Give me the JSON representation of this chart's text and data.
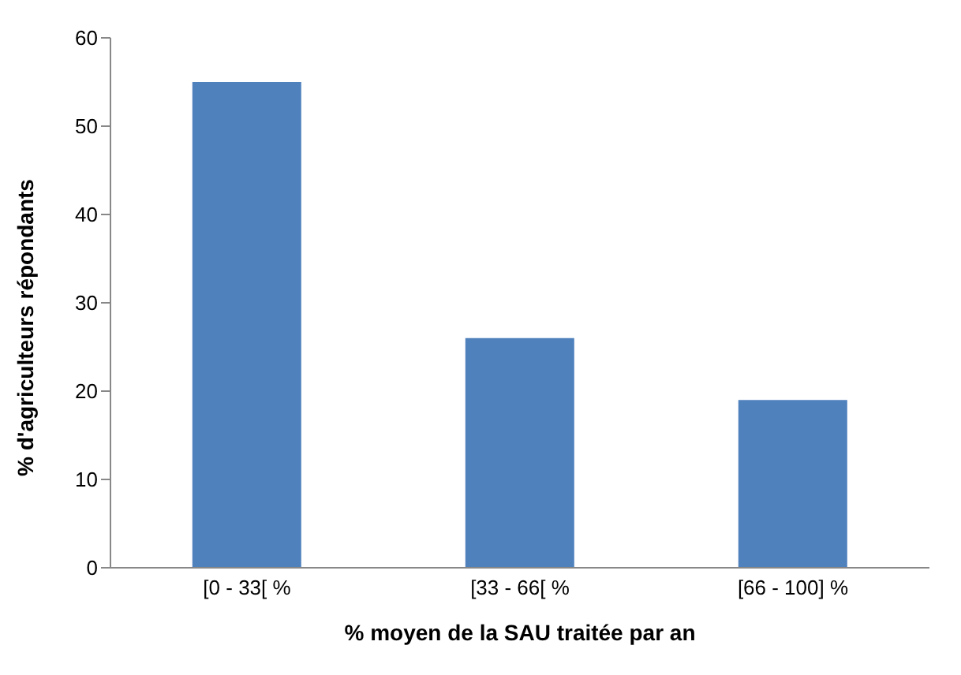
{
  "chart_data": {
    "type": "bar",
    "xlabel": "% moyen de la SAU traitée par an",
    "ylabel": "% d'agriculteurs répondants",
    "categories": [
      "[0 - 33[ %",
      "[33 - 66[ %",
      "[66 - 100] %"
    ],
    "values": [
      55,
      26,
      19
    ],
    "color": "#4f81bd",
    "ylim": [
      0,
      60
    ],
    "yticks": [
      0,
      10,
      20,
      30,
      40,
      50,
      60
    ],
    "grid": false,
    "legend": false
  }
}
